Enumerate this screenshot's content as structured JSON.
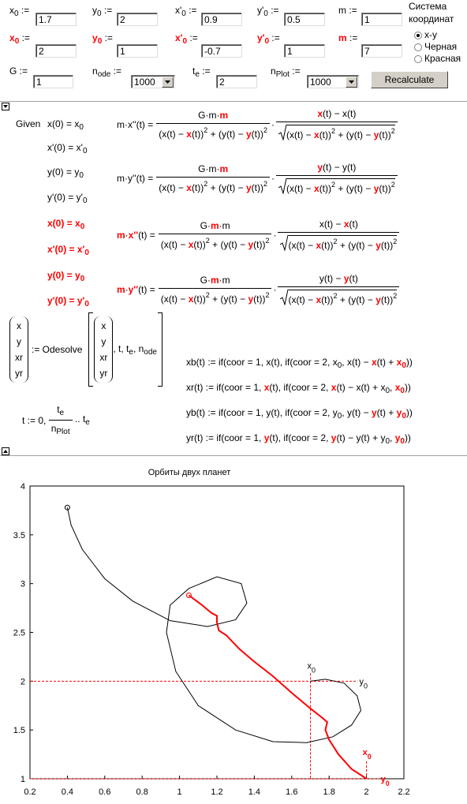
{
  "inputs": [
    {
      "label": [
        [
          "x"
        ],
        [
          "0",
          "b"
        ],
        [
          " :="
        ]
      ],
      "value": 1.7
    },
    {
      "label": [
        [
          "y"
        ],
        [
          "0",
          "b"
        ],
        [
          " :="
        ]
      ],
      "value": 2
    },
    {
      "label": [
        [
          "x'"
        ],
        [
          "0",
          "b"
        ],
        [
          " :="
        ]
      ],
      "value": 0.9
    },
    {
      "label": [
        [
          "y'"
        ],
        [
          "0",
          "b"
        ],
        [
          " :="
        ]
      ],
      "value": 0.5
    },
    {
      "label": [
        [
          "m :="
        ]
      ],
      "value": 1
    },
    {
      "label": [
        [
          "x",
          "r"
        ],
        [
          "0",
          "rb"
        ],
        [
          " :="
        ]
      ],
      "value": 2
    },
    {
      "label": [
        [
          "y",
          "r"
        ],
        [
          "0",
          "rb"
        ],
        [
          " :="
        ]
      ],
      "value": 1
    },
    {
      "label": [
        [
          "x'",
          "r"
        ],
        [
          "0",
          "rb"
        ],
        [
          " :="
        ]
      ],
      "value": -0.7
    },
    {
      "label": [
        [
          "y'",
          "r"
        ],
        [
          "0",
          "rb"
        ],
        [
          " :="
        ]
      ],
      "value": 1
    },
    {
      "label": [
        [
          "m",
          "r"
        ],
        [
          " :="
        ]
      ],
      "value": 7
    },
    {
      "label": [
        [
          "G :="
        ]
      ],
      "value": 1
    },
    {
      "label": [
        [
          "n"
        ],
        [
          "ode",
          "b"
        ],
        [
          " :="
        ]
      ],
      "value": 1000,
      "control": "select"
    },
    {
      "label": [
        [
          "t"
        ],
        [
          "e",
          "b"
        ],
        [
          " :="
        ]
      ],
      "value": 2
    },
    {
      "label": [
        [
          "n"
        ],
        [
          "Plot",
          "b"
        ],
        [
          " :="
        ]
      ],
      "value": 1000,
      "control": "select"
    }
  ],
  "radio": {
    "title": [
      "Система",
      "координат"
    ],
    "options": [
      "x-y",
      "Черная",
      "Красная"
    ],
    "selected": 0
  },
  "button": "Recalculate",
  "given": {
    "keyword": "Given",
    "conditions": [
      [
        [
          "x(0) = x"
        ],
        [
          "0",
          "b"
        ]
      ],
      [
        [
          "x'(0) = x'"
        ],
        [
          "0",
          "b"
        ]
      ],
      [
        [
          "y(0) = y"
        ],
        [
          "0",
          "b"
        ]
      ],
      [
        [
          "y'(0) = y'"
        ],
        [
          "0",
          "b"
        ]
      ],
      [
        [
          "x(0) = x",
          "r"
        ],
        [
          "0",
          "rb"
        ]
      ],
      [
        [
          "x'(0) = x'",
          "r"
        ],
        [
          "0",
          "rb"
        ]
      ],
      [
        [
          "y(0) = y",
          "r"
        ],
        [
          "0",
          "rb"
        ]
      ],
      [
        [
          "y'(0) = y'",
          "r"
        ],
        [
          "0",
          "rb"
        ]
      ]
    ]
  },
  "odes": [
    {
      "lhs": [
        [
          "m·x''(t) ="
        ]
      ],
      "num1": [
        [
          "G·m·"
        ],
        [
          "m",
          "r"
        ]
      ],
      "den1": [
        [
          "(x(t) − "
        ],
        [
          "x",
          "r"
        ],
        [
          "(t))"
        ],
        [
          "2",
          "p"
        ],
        [
          " + (y(t) − "
        ],
        [
          "y",
          "r"
        ],
        [
          "(t))"
        ],
        [
          "2",
          "p"
        ]
      ],
      "op": "·",
      "num2": [
        [
          "x",
          "r"
        ],
        [
          "(t) − x(t)"
        ]
      ],
      "den2": [
        [
          "(x(t) − "
        ],
        [
          "x",
          "r"
        ],
        [
          "(t))"
        ],
        [
          "2",
          "p"
        ],
        [
          " + (y(t) − "
        ],
        [
          "y",
          "r"
        ],
        [
          "(t))"
        ],
        [
          "2",
          "p"
        ]
      ]
    },
    {
      "lhs": [
        [
          "m·y''(t) ="
        ]
      ],
      "num1": [
        [
          "G·m·"
        ],
        [
          "m",
          "r"
        ]
      ],
      "den1": [
        [
          "(x(t) − "
        ],
        [
          "x",
          "r"
        ],
        [
          "(t))"
        ],
        [
          "2",
          "p"
        ],
        [
          " + (y(t) − "
        ],
        [
          "y",
          "r"
        ],
        [
          "(t))"
        ],
        [
          "2",
          "p"
        ]
      ],
      "op": "·",
      "num2": [
        [
          "y",
          "r"
        ],
        [
          "(t) − y(t)"
        ]
      ],
      "den2": [
        [
          "(x(t) − "
        ],
        [
          "x",
          "r"
        ],
        [
          "(t))"
        ],
        [
          "2",
          "p"
        ],
        [
          " + (y(t) − "
        ],
        [
          "y",
          "r"
        ],
        [
          "(t))"
        ],
        [
          "2",
          "p"
        ]
      ]
    },
    {
      "lhs": [
        [
          "m",
          "r"
        ],
        [
          "·"
        ],
        [
          "x''",
          "r"
        ],
        [
          "(t) ="
        ]
      ],
      "num1": [
        [
          "G·"
        ],
        [
          "m",
          "r"
        ],
        [
          "·m"
        ]
      ],
      "den1": [
        [
          "(x(t) − "
        ],
        [
          "x",
          "r"
        ],
        [
          "(t))"
        ],
        [
          "2",
          "p"
        ],
        [
          " + (y(t) − "
        ],
        [
          "y",
          "r"
        ],
        [
          "(t))"
        ],
        [
          "2",
          "p"
        ]
      ],
      "op": "·",
      "num2": [
        [
          "x(t) − "
        ],
        [
          "x",
          "r"
        ],
        [
          "(t)"
        ]
      ],
      "den2": [
        [
          "(x(t) − "
        ],
        [
          "x",
          "r"
        ],
        [
          "(t))"
        ],
        [
          "2",
          "p"
        ],
        [
          " + (y(t) − "
        ],
        [
          "y",
          "r"
        ],
        [
          "(t))"
        ],
        [
          "2",
          "p"
        ]
      ]
    },
    {
      "lhs": [
        [
          "m",
          "r"
        ],
        [
          "·"
        ],
        [
          "y''",
          "r"
        ],
        [
          "(t) ="
        ]
      ],
      "num1": [
        [
          "G·"
        ],
        [
          "m",
          "r"
        ],
        [
          "·m"
        ]
      ],
      "den1": [
        [
          "(x(t) − "
        ],
        [
          "x",
          "r"
        ],
        [
          "(t))"
        ],
        [
          "2",
          "p"
        ],
        [
          " + (y(t) − "
        ],
        [
          "y",
          "r"
        ],
        [
          "(t))"
        ],
        [
          "2",
          "p"
        ]
      ],
      "op": "·",
      "num2": [
        [
          "y(t) − "
        ],
        [
          "y",
          "r"
        ],
        [
          "(t)"
        ]
      ],
      "den2": [
        [
          "(x(t) − "
        ],
        [
          "x",
          "r"
        ],
        [
          "(t))"
        ],
        [
          "2",
          "p"
        ],
        [
          " + (y(t) − "
        ],
        [
          "y",
          "r"
        ],
        [
          "(t))"
        ],
        [
          "2",
          "p"
        ]
      ]
    }
  ],
  "odesolve": {
    "lhsvec": [
      [
        "x"
      ],
      [
        "y"
      ],
      [
        "x",
        "r"
      ],
      [
        "y",
        "r"
      ]
    ],
    "op": ":= Odesolve",
    "argvec": [
      [
        "x"
      ],
      [
        "y"
      ],
      [
        "x",
        "r"
      ],
      [
        "y",
        "r"
      ]
    ],
    "args": [
      [
        ", t, t"
      ],
      [
        "e",
        "b"
      ],
      [
        ", n"
      ],
      [
        "ode",
        "b"
      ]
    ]
  },
  "range": {
    "start": [
      [
        "t := 0, "
      ]
    ],
    "num": [
      [
        "t"
      ],
      [
        "e",
        "b"
      ]
    ],
    "den": [
      [
        "n"
      ],
      [
        "Plot",
        "b"
      ]
    ],
    "end": [
      [
        " .. t"
      ],
      [
        "e",
        "b"
      ]
    ]
  },
  "defs": [
    [
      [
        "xb(t) := if(coor = 1, x(t), if(coor = 2, x"
      ],
      [
        "0",
        "b"
      ],
      [
        ", x(t) − "
      ],
      [
        "x",
        "r"
      ],
      [
        "(t) + "
      ],
      [
        "x",
        "r"
      ],
      [
        "0",
        "rb"
      ],
      [
        "))"
      ]
    ],
    [
      [
        "xr(t) := if(coor = 1, "
      ],
      [
        "x",
        "r"
      ],
      [
        "(t), if(coor = 2, "
      ],
      [
        "x",
        "r"
      ],
      [
        "(t) − x(t) + x"
      ],
      [
        "0",
        "b"
      ],
      [
        ", "
      ],
      [
        "x",
        "r"
      ],
      [
        "0",
        "rb"
      ],
      [
        "))"
      ]
    ],
    [
      [
        "yb(t) := if(coor = 1, y(t), if(coor = 2, y"
      ],
      [
        "0",
        "b"
      ],
      [
        ", y(t) − "
      ],
      [
        "y",
        "r"
      ],
      [
        "(t) + "
      ],
      [
        "y",
        "r"
      ],
      [
        "0",
        "rb"
      ],
      [
        "))"
      ]
    ],
    [
      [
        "yr(t) := if(coor = 1, "
      ],
      [
        "y",
        "r"
      ],
      [
        "(t), if(coor = 2, "
      ],
      [
        "y",
        "r"
      ],
      [
        "(t) − y(t) + y"
      ],
      [
        "0",
        "b"
      ],
      [
        ", "
      ],
      [
        "y",
        "r"
      ],
      [
        "0",
        "rb"
      ],
      [
        "))"
      ]
    ]
  ],
  "chart_data": {
    "type": "line",
    "title": "Орбиты двух планет",
    "xlim": [
      0.2,
      2.2
    ],
    "xticks": [
      0.2,
      0.4,
      0.6,
      0.8,
      1,
      1.2,
      1.4,
      1.6,
      1.8,
      2,
      2.2
    ],
    "ylim": [
      1,
      4
    ],
    "yticks": [
      1,
      1.5,
      2,
      2.5,
      3,
      3.5,
      4
    ],
    "series": [
      {
        "color": "#000000",
        "x": [
          1.7,
          1.78,
          1.88,
          1.95,
          1.97,
          1.92,
          1.82,
          1.68,
          1.5,
          1.3,
          1.1,
          0.98,
          0.93,
          0.95,
          1.05,
          1.2,
          1.33,
          1.36,
          1.3,
          1.15,
          0.95,
          0.75,
          0.6,
          0.48,
          0.42,
          0.4
        ],
        "values": [
          2.0,
          2.02,
          1.98,
          1.85,
          1.7,
          1.55,
          1.43,
          1.37,
          1.38,
          1.5,
          1.75,
          2.1,
          2.5,
          2.78,
          2.95,
          3.07,
          3.0,
          2.8,
          2.63,
          2.56,
          2.62,
          2.82,
          3.05,
          3.35,
          3.6,
          3.78
        ]
      },
      {
        "color": "#ff0000",
        "x": [
          2.0,
          1.92,
          1.85,
          1.8,
          1.78,
          1.79,
          1.76,
          1.7,
          1.6,
          1.5,
          1.4,
          1.32,
          1.25,
          1.21,
          1.2,
          1.2,
          1.17,
          1.12,
          1.05
        ],
        "values": [
          1.0,
          1.1,
          1.25,
          1.4,
          1.5,
          1.58,
          1.63,
          1.72,
          1.88,
          2.05,
          2.2,
          2.33,
          2.47,
          2.52,
          2.6,
          2.67,
          2.7,
          2.78,
          2.88
        ]
      }
    ],
    "annotations": [
      [
        [
          "x"
        ],
        [
          "0",
          "b"
        ]
      ],
      [
        [
          "y"
        ],
        [
          "0",
          "b"
        ]
      ],
      [
        [
          "x",
          "r"
        ],
        [
          "0",
          "rb"
        ]
      ],
      [
        [
          "y",
          "r"
        ],
        [
          "0",
          "rb"
        ]
      ]
    ]
  }
}
